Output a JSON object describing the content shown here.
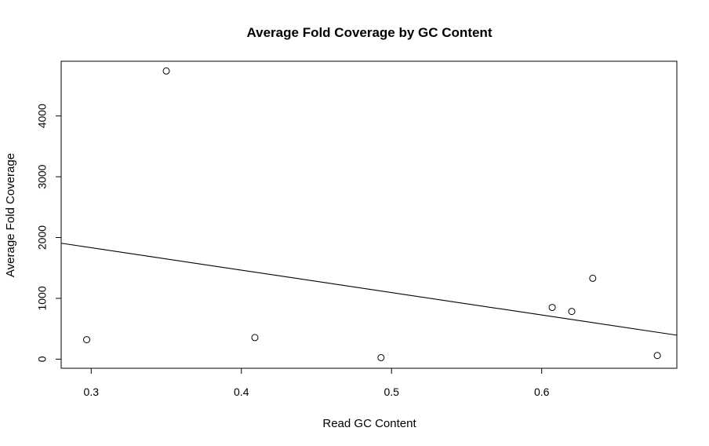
{
  "chart_data": {
    "type": "scatter",
    "title": "Average Fold Coverage by GC Content",
    "xlabel": "Read GC Content",
    "ylabel": "Average Fold Coverage",
    "xlim": [
      0.28,
      0.69
    ],
    "ylim": [
      -150,
      4900
    ],
    "x_ticks": [
      0.3,
      0.4,
      0.5,
      0.6
    ],
    "x_tick_labels": [
      "0.3",
      "0.4",
      "0.5",
      "0.6"
    ],
    "y_ticks": [
      0,
      1000,
      2000,
      3000,
      4000
    ],
    "y_tick_labels": [
      "0",
      "1000",
      "2000",
      "3000",
      "4000"
    ],
    "grid": false,
    "points": [
      {
        "x": 0.297,
        "y": 320
      },
      {
        "x": 0.35,
        "y": 4740
      },
      {
        "x": 0.409,
        "y": 355
      },
      {
        "x": 0.493,
        "y": 25
      },
      {
        "x": 0.607,
        "y": 850
      },
      {
        "x": 0.62,
        "y": 785
      },
      {
        "x": 0.634,
        "y": 1330
      },
      {
        "x": 0.677,
        "y": 60
      }
    ],
    "regression_line": {
      "intercept": 2940,
      "slope": -3690
    }
  }
}
